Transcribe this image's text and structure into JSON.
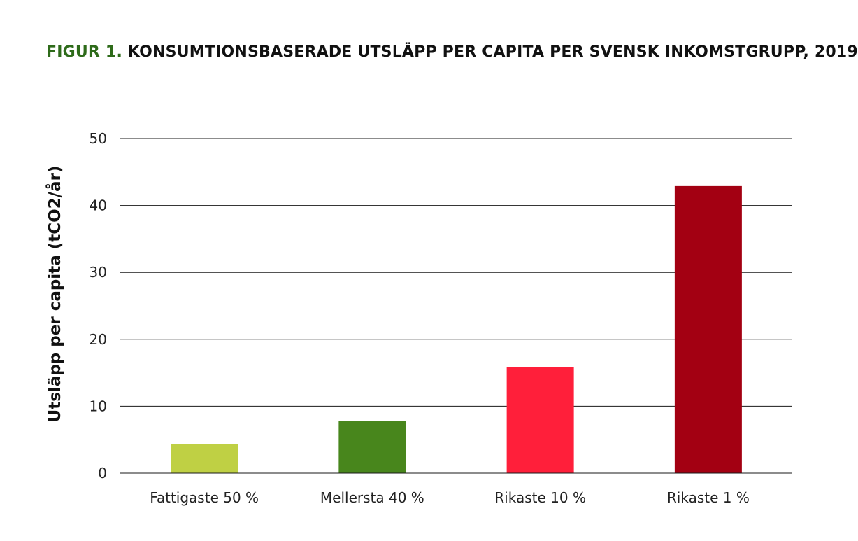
{
  "chart_data": {
    "type": "bar",
    "title_prefix": "FIGUR 1.",
    "title": "KONSUMTIONSBASERADE UTSLÄPP PER CAPITA PER SVENSK INKOMSTGRUPP, 2019",
    "ylabel": "Utsläpp per capita (tCO2/år)",
    "xlabel": "",
    "ylim": [
      0,
      50
    ],
    "yticks": [
      0,
      10,
      20,
      30,
      40,
      50
    ],
    "grid": true,
    "categories": [
      "Fattigaste 50 %",
      "Mellersta 40 %",
      "Rikaste 10 %",
      "Rikaste 1 %"
    ],
    "values": [
      4.3,
      7.8,
      15.8,
      42.9
    ],
    "colors": [
      "#bfd044",
      "#48861c",
      "#ff1f3a",
      "#a30012"
    ]
  }
}
